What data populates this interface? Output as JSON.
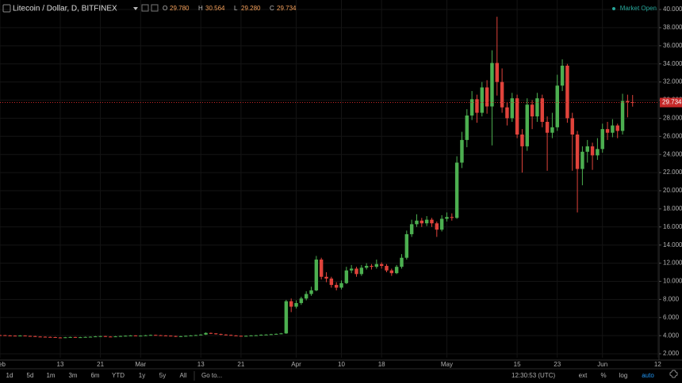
{
  "toolbar": {
    "symbol": "Litecoin / Dollar, D, BITFINEX",
    "market_status": "Market Open",
    "ohlc": [
      [
        "O",
        "29.780"
      ],
      [
        "H",
        "30.564"
      ],
      [
        "L",
        "29.280"
      ],
      [
        "C",
        "29.734"
      ]
    ]
  },
  "chart_data": {
    "type": "candlestick",
    "up_color": "#4caf50",
    "down_color": "#e0433b",
    "last_price_color": "#c62828",
    "grid": true,
    "ylim": [
      1.57,
      41.05
    ],
    "yticks": [
      {
        "value": 2,
        "label": "2.000"
      },
      {
        "value": 4,
        "label": "4.000"
      },
      {
        "value": 6,
        "label": "6.000"
      },
      {
        "value": 8,
        "label": "8.000"
      },
      {
        "value": 10,
        "label": "10.000"
      },
      {
        "value": 12,
        "label": "12.000"
      },
      {
        "value": 14,
        "label": "14.000"
      },
      {
        "value": 16,
        "label": "16.000"
      },
      {
        "value": 18,
        "label": "18.000"
      },
      {
        "value": 20,
        "label": "20.000"
      },
      {
        "value": 22,
        "label": "22.000"
      },
      {
        "value": 24,
        "label": "24.000"
      },
      {
        "value": 26,
        "label": "26.000"
      },
      {
        "value": 28,
        "label": "28.000"
      },
      {
        "value": 30,
        "label": "30.000"
      },
      {
        "value": 32,
        "label": "32.000"
      },
      {
        "value": 34,
        "label": "34.000"
      },
      {
        "value": 36,
        "label": "36.000"
      },
      {
        "value": 38,
        "label": "38.000"
      },
      {
        "value": 40,
        "label": "40.000"
      }
    ],
    "xlim": [
      0,
      131.1
    ],
    "xticks": [
      {
        "value": 0,
        "label": "Feb"
      },
      {
        "value": 12,
        "label": "13"
      },
      {
        "value": 20,
        "label": "21"
      },
      {
        "value": 28,
        "label": "Mar"
      },
      {
        "value": 40,
        "label": "13"
      },
      {
        "value": 48,
        "label": "21"
      },
      {
        "value": 59,
        "label": "Apr"
      },
      {
        "value": 68,
        "label": "10"
      },
      {
        "value": 76,
        "label": "18"
      },
      {
        "value": 89,
        "label": "May"
      },
      {
        "value": 103,
        "label": "15"
      },
      {
        "value": 111,
        "label": "23"
      },
      {
        "value": 120,
        "label": "Jun"
      },
      {
        "value": 131,
        "label": "12"
      }
    ],
    "open": [
      4.06,
      4.05,
      4.02,
      4.0,
      3.98,
      4.01,
      3.97,
      3.95,
      3.9,
      3.88,
      3.86,
      3.84,
      3.8,
      3.78,
      3.82,
      3.85,
      3.8,
      3.83,
      3.86,
      3.88,
      3.92,
      3.95,
      3.9,
      3.88,
      3.92,
      3.96,
      3.99,
      4.02,
      3.98,
      4.0,
      4.04,
      4.08,
      4.05,
      4.02,
      4.0,
      3.96,
      3.9,
      3.94,
      3.98,
      4.02,
      4.06,
      4.12,
      4.3,
      4.25,
      4.18,
      4.12,
      4.08,
      4.02,
      3.98,
      3.96,
      3.98,
      4.02,
      4.04,
      4.1,
      4.12,
      4.16,
      4.2,
      4.25,
      7.8,
      7.2,
      7.6,
      8.1,
      8.6,
      9.0,
      12.4,
      10.5,
      10.3,
      9.6,
      9.3,
      9.8,
      11.2,
      11.4,
      10.8,
      11.5,
      11.7,
      11.6,
      11.9,
      11.7,
      11.2,
      10.9,
      11.6,
      12.6,
      15.2,
      16.3,
      16.7,
      16.4,
      16.8,
      16.4,
      15.7,
      16.9,
      17.1,
      17.0,
      23.1,
      25.6,
      28.3,
      30.1,
      28.6,
      31.4,
      29.3,
      34.1,
      32.0,
      29.2,
      28.0,
      30.2,
      26.2,
      24.9,
      29.5,
      28.2,
      30.2,
      27.6,
      26.4,
      27.0,
      31.6,
      33.8,
      28.0,
      26.2,
      22.4,
      24.3,
      24.9,
      23.9,
      24.6,
      26.8,
      26.4,
      27.2,
      26.6,
      29.9,
      29.78
    ],
    "high": [
      4.1,
      4.08,
      4.06,
      4.04,
      4.05,
      4.04,
      4.0,
      3.98,
      3.94,
      3.92,
      3.9,
      3.88,
      3.84,
      3.86,
      3.89,
      3.88,
      3.87,
      3.9,
      3.92,
      3.96,
      3.99,
      3.98,
      3.94,
      3.96,
      4.0,
      4.03,
      4.06,
      4.05,
      4.04,
      4.08,
      4.12,
      4.11,
      4.08,
      4.06,
      4.03,
      3.99,
      3.98,
      4.02,
      4.06,
      4.1,
      4.16,
      4.36,
      4.34,
      4.28,
      4.22,
      4.16,
      4.12,
      4.06,
      4.02,
      4.02,
      4.06,
      4.08,
      4.14,
      4.16,
      4.2,
      4.24,
      4.3,
      7.95,
      8.1,
      7.9,
      8.3,
      8.9,
      9.4,
      12.8,
      12.6,
      11.0,
      10.5,
      9.9,
      10.1,
      11.6,
      11.8,
      11.6,
      11.8,
      12.0,
      11.9,
      12.4,
      12.1,
      11.9,
      11.4,
      11.8,
      13.0,
      15.6,
      16.8,
      17.4,
      17.0,
      17.2,
      17.0,
      16.6,
      17.3,
      17.6,
      17.5,
      23.8,
      26.5,
      29.0,
      31.0,
      30.6,
      32.0,
      32.2,
      35.5,
      39.2,
      33.5,
      29.8,
      30.8,
      30.6,
      26.8,
      30.2,
      30.0,
      30.8,
      30.6,
      28.2,
      28.6,
      32.8,
      34.5,
      34.0,
      28.6,
      26.6,
      24.9,
      25.6,
      25.3,
      25.8,
      27.4,
      27.6,
      27.9,
      27.4,
      30.7,
      30.6,
      30.564
    ],
    "low": [
      4.0,
      3.98,
      3.96,
      3.94,
      3.94,
      3.93,
      3.91,
      3.86,
      3.84,
      3.82,
      3.8,
      3.76,
      3.74,
      3.74,
      3.78,
      3.76,
      3.76,
      3.79,
      3.82,
      3.84,
      3.88,
      3.86,
      3.84,
      3.84,
      3.88,
      3.92,
      3.95,
      3.94,
      3.94,
      3.96,
      4.0,
      4.01,
      3.98,
      3.96,
      3.92,
      3.86,
      3.86,
      3.9,
      3.94,
      3.98,
      4.02,
      4.08,
      4.18,
      4.12,
      4.06,
      4.02,
      3.98,
      3.94,
      3.92,
      3.92,
      3.94,
      3.98,
      4.0,
      4.06,
      4.08,
      4.12,
      4.15,
      4.2,
      6.6,
      7.0,
      7.4,
      7.9,
      8.4,
      8.9,
      10.2,
      9.9,
      9.3,
      9.0,
      9.1,
      9.7,
      10.9,
      10.5,
      10.6,
      11.3,
      11.3,
      11.4,
      11.4,
      11.0,
      10.6,
      10.8,
      11.4,
      12.4,
      14.9,
      16.0,
      16.0,
      16.1,
      16.0,
      14.9,
      15.5,
      16.6,
      16.7,
      16.9,
      22.5,
      24.8,
      27.8,
      27.5,
      28.2,
      28.5,
      25.0,
      30.5,
      28.6,
      27.2,
      27.6,
      25.8,
      22.0,
      24.4,
      26.8,
      27.6,
      27.0,
      22.2,
      25.8,
      26.6,
      31.0,
      27.5,
      22.2,
      17.6,
      20.6,
      23.1,
      22.3,
      23.4,
      24.2,
      25.6,
      25.9,
      25.8,
      26.2,
      28.1,
      29.28
    ],
    "close": [
      4.05,
      4.02,
      4.0,
      3.98,
      4.01,
      3.97,
      3.95,
      3.9,
      3.88,
      3.86,
      3.84,
      3.8,
      3.78,
      3.82,
      3.85,
      3.8,
      3.83,
      3.86,
      3.88,
      3.92,
      3.95,
      3.9,
      3.88,
      3.92,
      3.96,
      3.99,
      4.02,
      3.98,
      4.0,
      4.04,
      4.08,
      4.05,
      4.02,
      4.0,
      3.96,
      3.9,
      3.94,
      3.98,
      4.02,
      4.06,
      4.12,
      4.3,
      4.25,
      4.18,
      4.12,
      4.08,
      4.02,
      3.98,
      3.96,
      3.98,
      4.02,
      4.04,
      4.1,
      4.12,
      4.16,
      4.2,
      4.25,
      7.8,
      7.2,
      7.6,
      8.1,
      8.6,
      9.0,
      12.4,
      10.5,
      10.3,
      9.6,
      9.3,
      9.8,
      11.2,
      11.4,
      10.8,
      11.5,
      11.7,
      11.6,
      11.9,
      11.7,
      11.2,
      10.9,
      11.6,
      12.6,
      15.2,
      16.3,
      16.7,
      16.4,
      16.8,
      16.4,
      15.7,
      16.9,
      17.1,
      17.0,
      23.1,
      25.6,
      28.3,
      30.1,
      28.6,
      31.4,
      29.3,
      34.1,
      32.0,
      29.2,
      28.0,
      30.2,
      26.2,
      24.9,
      29.5,
      28.2,
      30.2,
      27.6,
      26.4,
      27.0,
      31.6,
      33.8,
      28.0,
      26.2,
      22.4,
      24.3,
      24.9,
      23.9,
      24.6,
      26.8,
      26.4,
      27.2,
      26.6,
      29.9,
      29.78,
      29.734
    ]
  },
  "footer": {
    "ranges": [
      "1d",
      "5d",
      "1m",
      "3m",
      "6m",
      "YTD",
      "1y",
      "5y",
      "All"
    ],
    "goto": "Go to...",
    "time": "12:30:53 (UTC)",
    "options": [
      "ext",
      "%",
      "log",
      "auto"
    ]
  }
}
